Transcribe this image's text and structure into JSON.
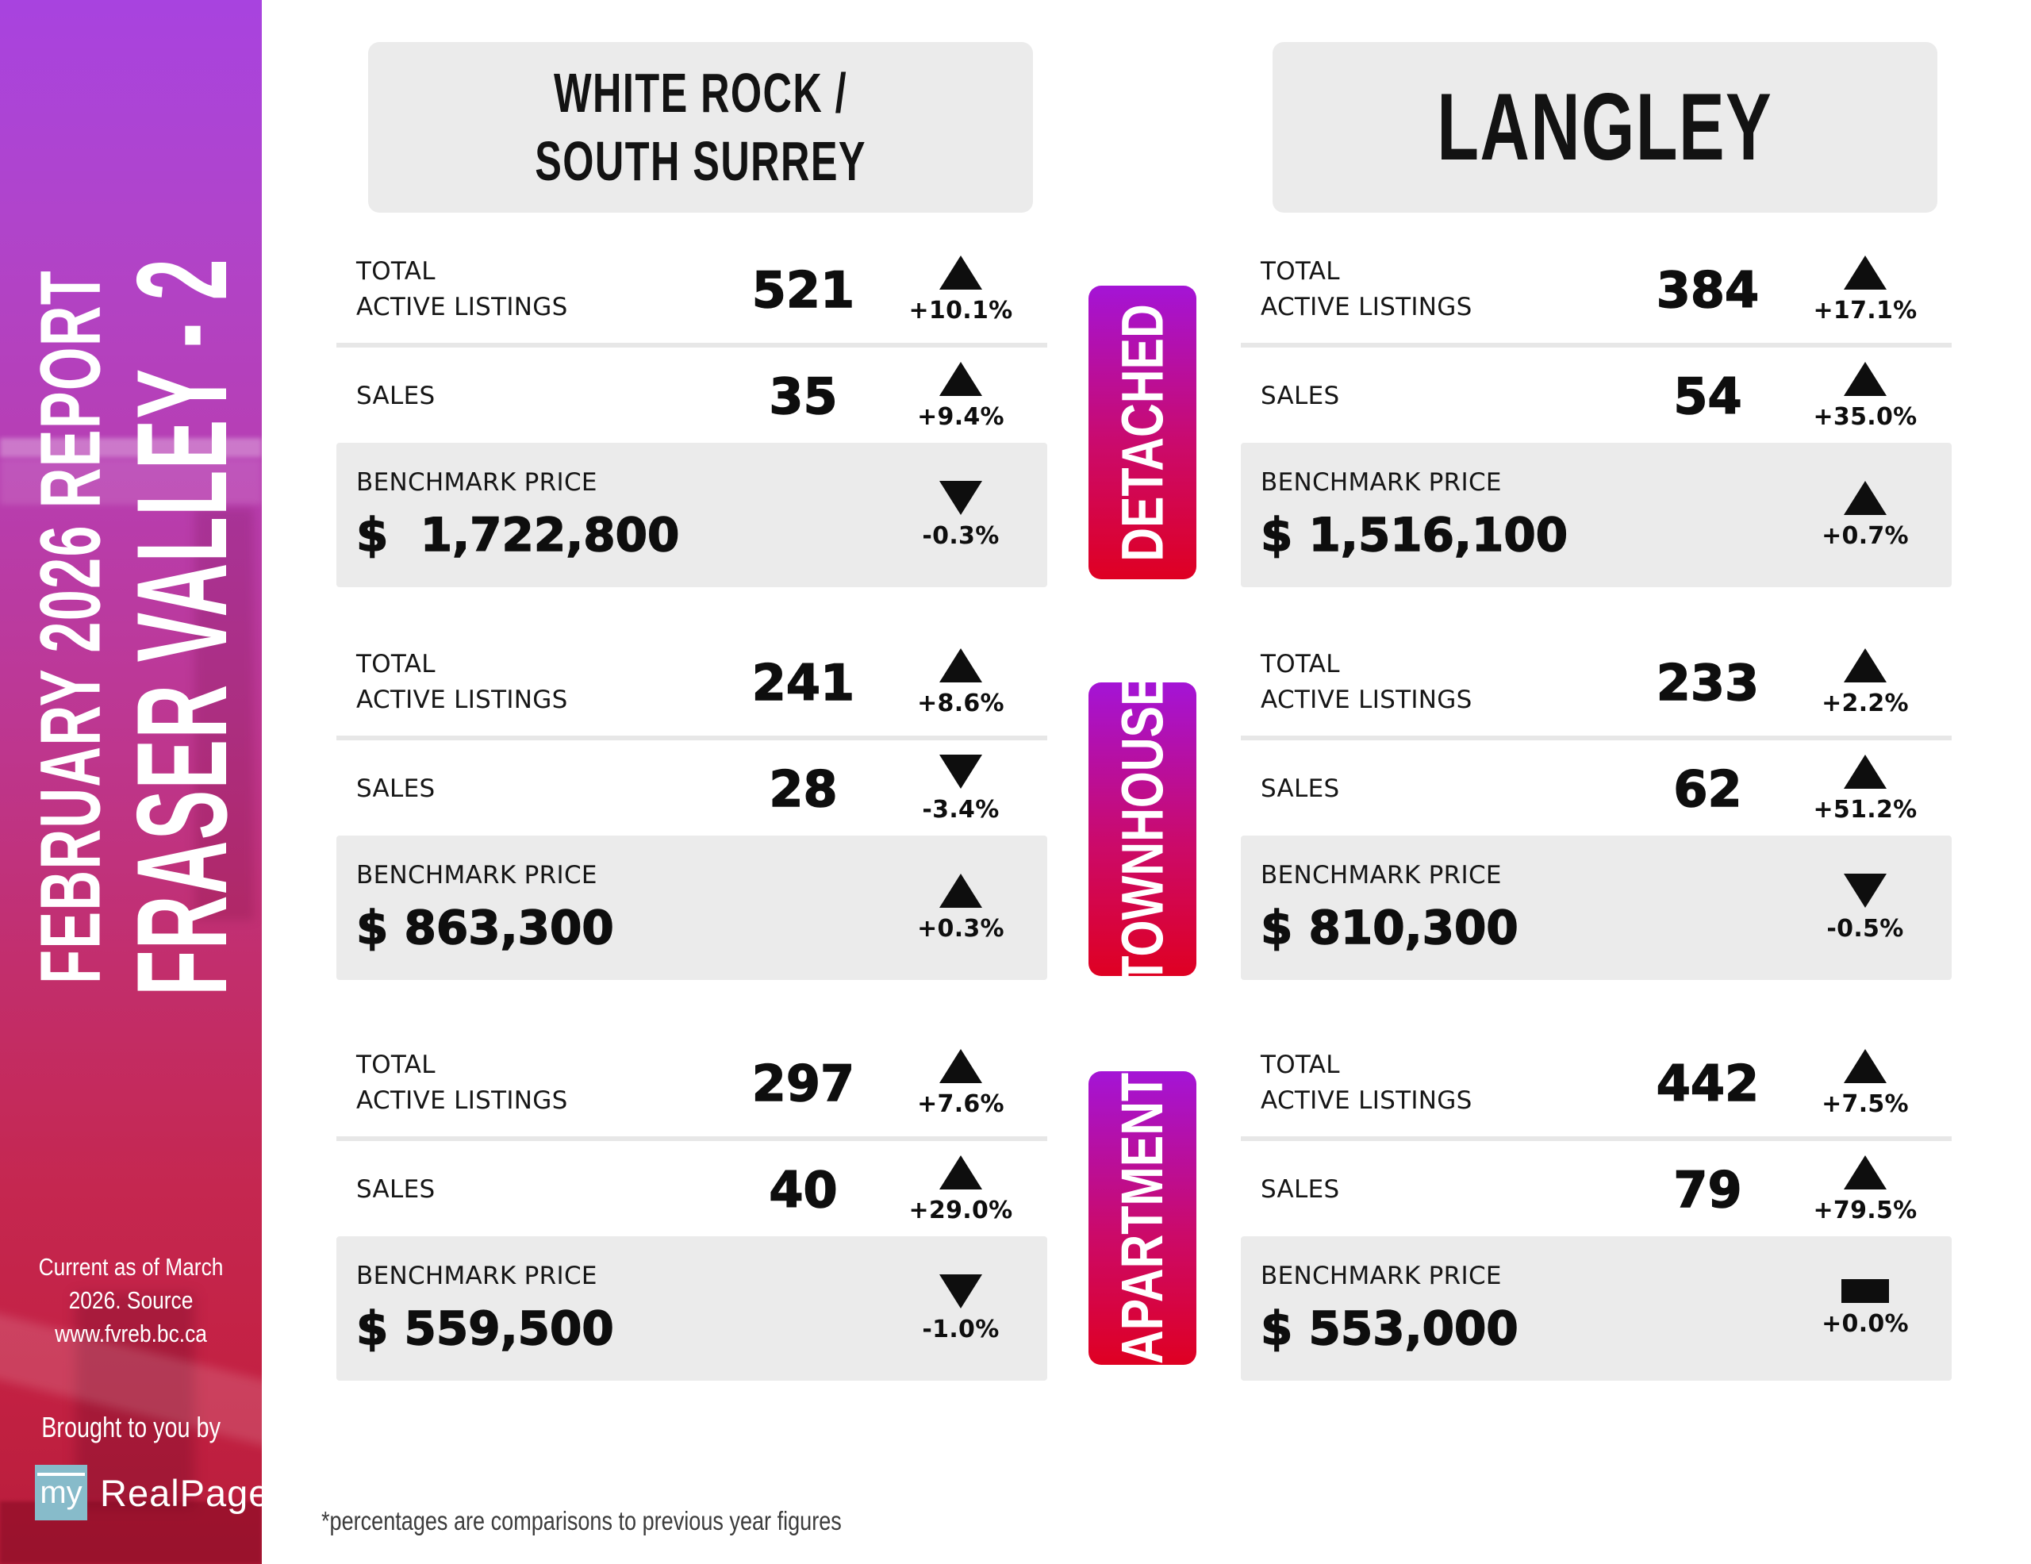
{
  "sidebar": {
    "report_line": "FEBRUARY 2026 REPORT",
    "region_line": "FRASER VALLEY - 2",
    "source_line1": "Current as of March 2026. Source",
    "source_line2": "www.fvreb.bc.ca",
    "brought_by": "Brought to you by",
    "logo": {
      "my": "my",
      "realpage": "RealPage",
      "square_color": "#87bbca"
    }
  },
  "labels": {
    "total_line1": "TOTAL",
    "total_line2": "ACTIVE LISTINGS",
    "sales": "SALES",
    "benchmark": "BENCHMARK PRICE"
  },
  "pills": [
    {
      "label": "DETACHED"
    },
    {
      "label": "TOWNHOUSE"
    },
    {
      "label": "APARTMENT"
    }
  ],
  "colors": {
    "pill_gradient_top": "#a414d6",
    "pill_gradient_bottom": "#df0022",
    "sidebar_gradient_top": "#a843df",
    "sidebar_gradient_bottom": "#b81d3b",
    "box_gray": "#ebebeb",
    "logo_square_blue": "#87bbca",
    "text_black": "#0e0e0e"
  },
  "columns": [
    {
      "title_lines": [
        "WHITE ROCK /",
        "SOUTH SURREY"
      ],
      "sections": [
        {
          "type": "DETACHED",
          "listings": {
            "value": "521",
            "pct": "+10.1%",
            "direction": "up"
          },
          "sales": {
            "value": "35",
            "pct": "+9.4%",
            "direction": "up"
          },
          "benchmark": {
            "price": "$  1,722,800",
            "pct": "-0.3%",
            "direction": "down"
          }
        },
        {
          "type": "TOWNHOUSE",
          "listings": {
            "value": "241",
            "pct": "+8.6%",
            "direction": "up"
          },
          "sales": {
            "value": "28",
            "pct": "-3.4%",
            "direction": "down"
          },
          "benchmark": {
            "price": "$ 863,300",
            "pct": "+0.3%",
            "direction": "up"
          }
        },
        {
          "type": "APARTMENT",
          "listings": {
            "value": "297",
            "pct": "+7.6%",
            "direction": "up"
          },
          "sales": {
            "value": "40",
            "pct": "+29.0%",
            "direction": "up"
          },
          "benchmark": {
            "price": "$ 559,500",
            "pct": "-1.0%",
            "direction": "down"
          }
        }
      ]
    },
    {
      "title_lines": [
        "LANGLEY"
      ],
      "sections": [
        {
          "type": "DETACHED",
          "listings": {
            "value": "384",
            "pct": "+17.1%",
            "direction": "up"
          },
          "sales": {
            "value": "54",
            "pct": "+35.0%",
            "direction": "up"
          },
          "benchmark": {
            "price": "$ 1,516,100",
            "pct": "+0.7%",
            "direction": "up"
          }
        },
        {
          "type": "TOWNHOUSE",
          "listings": {
            "value": "233",
            "pct": "+2.2%",
            "direction": "up"
          },
          "sales": {
            "value": "62",
            "pct": "+51.2%",
            "direction": "up"
          },
          "benchmark": {
            "price": "$ 810,300",
            "pct": "-0.5%",
            "direction": "down"
          }
        },
        {
          "type": "APARTMENT",
          "listings": {
            "value": "442",
            "pct": "+7.5%",
            "direction": "up"
          },
          "sales": {
            "value": "79",
            "pct": "+79.5%",
            "direction": "up"
          },
          "benchmark": {
            "price": "$ 553,000",
            "pct": "+0.0%",
            "direction": "flat"
          }
        }
      ]
    }
  ],
  "footnote": "*percentages are comparisons to previous year figures"
}
